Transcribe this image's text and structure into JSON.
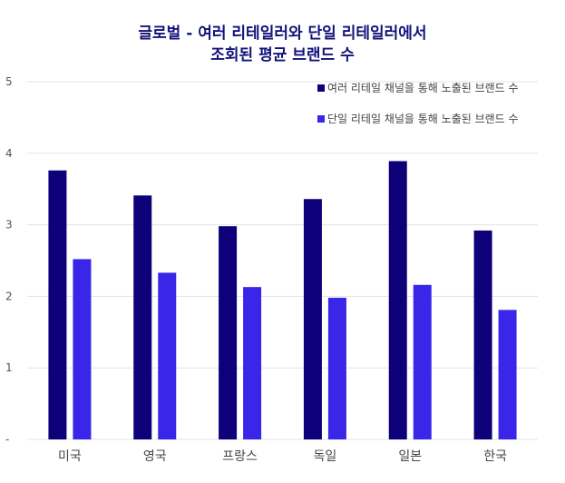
{
  "chart_data": {
    "type": "bar",
    "title_lines": [
      "글로벌 - 여러 리테일러와 단일 리테일러에서",
      "조회된 평균 브랜드 수"
    ],
    "categories": [
      "미국",
      "영국",
      "프랑스",
      "독일",
      "일본",
      "한국"
    ],
    "series": [
      {
        "name": "여러 리테일 채널을 통해 노출된 브랜드 수",
        "color": "#0d0079",
        "values": [
          3.76,
          3.41,
          2.98,
          3.36,
          3.89,
          2.92
        ]
      },
      {
        "name": "단일 리테일 채널을 통해 노출된 브랜드 수",
        "color": "#3a26e8",
        "values": [
          2.52,
          2.33,
          2.13,
          1.98,
          2.16,
          1.81
        ]
      }
    ],
    "ylim": [
      0,
      5
    ],
    "yticks": [
      "-",
      "1",
      "2",
      "3",
      "4",
      "5"
    ],
    "grid": true,
    "legend_position": "top-right"
  }
}
